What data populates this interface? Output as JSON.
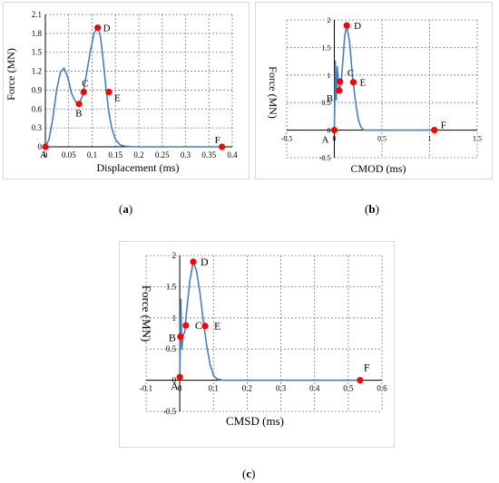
{
  "colors": {
    "line": "#4a7ebb",
    "point": "#ff0000",
    "grid": "#7f7f7f",
    "axis": "#000000"
  },
  "chart_data": [
    {
      "type": "line",
      "panel": "(a)",
      "xlabel": "Displacement (ms)",
      "ylabel": "Force (MN)",
      "xlim": [
        0,
        0.4
      ],
      "ylim": [
        0,
        2.1
      ],
      "xticks": [
        "0",
        "0.05",
        "0.1",
        "0.15",
        "0.2",
        "0.25",
        "0.3",
        "0.35",
        "0.4"
      ],
      "yticks": [
        "0",
        "0.3",
        "0.6",
        "0.9",
        "1.2",
        "1.5",
        "1.8",
        "2.1"
      ],
      "grid": "dashed",
      "series": [
        {
          "x": [
            0,
            0.008,
            0.016,
            0.024,
            0.032,
            0.04,
            0.048,
            0.056,
            0.064,
            0.072,
            0.08,
            0.088,
            0.096,
            0.104,
            0.112,
            0.118,
            0.124,
            0.13,
            0.136,
            0.142,
            0.15,
            0.16,
            0.17,
            0.19,
            0.38
          ],
          "y": [
            0,
            0.12,
            0.45,
            0.9,
            1.18,
            1.25,
            1.1,
            0.85,
            0.72,
            0.68,
            0.82,
            1.15,
            1.5,
            1.8,
            1.9,
            1.75,
            1.35,
            0.9,
            0.55,
            0.3,
            0.12,
            0.03,
            0.01,
            0,
            0
          ]
        }
      ],
      "points": [
        {
          "label": "A",
          "x": 0,
          "y": 0
        },
        {
          "label": "B",
          "x": 0.072,
          "y": 0.68
        },
        {
          "label": "C",
          "x": 0.082,
          "y": 0.87
        },
        {
          "label": "D",
          "x": 0.112,
          "y": 1.89
        },
        {
          "label": "E",
          "x": 0.136,
          "y": 0.87
        },
        {
          "label": "F",
          "x": 0.378,
          "y": 0
        }
      ]
    },
    {
      "type": "line",
      "panel": "(b)",
      "xlabel": "CMOD (ms)",
      "ylabel": "Force (MN)",
      "xlim": [
        -0.5,
        1.5
      ],
      "ylim": [
        -0.5,
        2
      ],
      "xticks": [
        "-0.5",
        "0",
        "0.5",
        "1",
        "1.5"
      ],
      "yticks": [
        "-0.5",
        "0",
        "0.5",
        "1",
        "1.5",
        "2"
      ],
      "grid": "dashed",
      "series": [
        {
          "x": [
            0,
            0.01,
            0.02,
            0.03,
            0.05,
            0.07,
            0.09,
            0.11,
            0.13,
            0.16,
            0.19,
            0.22,
            0.25,
            0.28,
            0.31,
            0.4,
            1.05
          ],
          "y": [
            0,
            1.25,
            0.55,
            1.15,
            0.7,
            0.85,
            1.25,
            1.72,
            1.9,
            1.6,
            1.0,
            0.55,
            0.2,
            0.05,
            0,
            0,
            0
          ]
        }
      ],
      "points": [
        {
          "label": "A",
          "x": 0,
          "y": 0
        },
        {
          "label": "B",
          "x": 0.05,
          "y": 0.72
        },
        {
          "label": "C",
          "x": 0.06,
          "y": 0.88
        },
        {
          "label": "D",
          "x": 0.13,
          "y": 1.9
        },
        {
          "label": "E",
          "x": 0.2,
          "y": 0.87
        },
        {
          "label": "F",
          "x": 1.05,
          "y": 0
        }
      ]
    },
    {
      "type": "line",
      "panel": "(c)",
      "xlabel": "CMSD (ms)",
      "ylabel": "Force (MN)",
      "xlim": [
        -0.1,
        0.6
      ],
      "ylim": [
        -0.5,
        2
      ],
      "xticks": [
        "-0.1",
        "0",
        "0.1",
        "0.2",
        "0.3",
        "0.4",
        "0.5",
        "0.6"
      ],
      "yticks": [
        "-0.5",
        "0",
        "0.5",
        "1",
        "1.5",
        "2"
      ],
      "grid": "dashed",
      "series": [
        {
          "x": [
            0,
            0.003,
            0.006,
            0.01,
            0.015,
            0.02,
            0.03,
            0.04,
            0.05,
            0.06,
            0.07,
            0.08,
            0.09,
            0.1,
            0.11,
            0.13,
            0.2,
            0.53
          ],
          "y": [
            0,
            1.3,
            0.5,
            0.72,
            0.78,
            1.1,
            1.6,
            1.9,
            1.75,
            1.4,
            0.95,
            0.55,
            0.25,
            0.08,
            0.02,
            0,
            0,
            0
          ]
        }
      ],
      "points": [
        {
          "label": "A",
          "x": 0,
          "y": 0.05
        },
        {
          "label": "B",
          "x": 0.002,
          "y": 0.7
        },
        {
          "label": "C",
          "x": 0.018,
          "y": 0.88
        },
        {
          "label": "D",
          "x": 0.04,
          "y": 1.9
        },
        {
          "label": "E",
          "x": 0.075,
          "y": 0.87
        },
        {
          "label": "F",
          "x": 0.535,
          "y": 0
        }
      ]
    }
  ]
}
